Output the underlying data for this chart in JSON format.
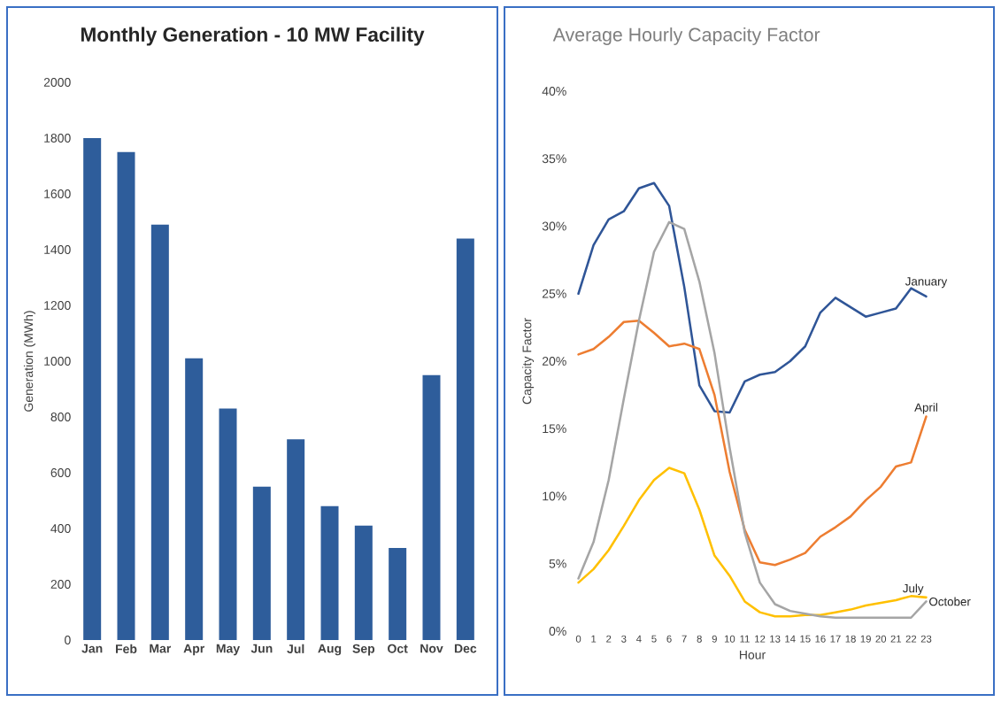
{
  "chart_data": [
    {
      "type": "bar",
      "title": "Monthly Generation - 10 MW Facility",
      "ylabel": "Generation (MWh)",
      "categories": [
        "Jan",
        "Feb",
        "Mar",
        "Apr",
        "May",
        "Jun",
        "Jul",
        "Aug",
        "Sep",
        "Oct",
        "Nov",
        "Dec"
      ],
      "values": [
        1800,
        1750,
        1490,
        1010,
        830,
        550,
        720,
        480,
        410,
        330,
        950,
        1440
      ],
      "color": "#2e5d9b",
      "ylim": [
        0,
        2000
      ],
      "yticks": [
        0,
        200,
        400,
        600,
        800,
        1000,
        1200,
        1400,
        1600,
        1800,
        2000
      ]
    },
    {
      "type": "line",
      "title": "Average Hourly Capacity Factor",
      "xlabel": "Hour",
      "ylabel": "Capacity Factor",
      "categories": [
        "0",
        "1",
        "2",
        "3",
        "4",
        "5",
        "6",
        "7",
        "8",
        "9",
        "10",
        "11",
        "12",
        "13",
        "14",
        "15",
        "16",
        "17",
        "18",
        "19",
        "20",
        "21",
        "22",
        "23"
      ],
      "series": [
        {
          "name": "January",
          "color": "#2f5597",
          "values": [
            25.0,
            28.6,
            30.5,
            31.1,
            32.8,
            33.2,
            31.5,
            25.5,
            18.2,
            16.3,
            16.2,
            18.5,
            19.0,
            19.2,
            20.0,
            21.1,
            23.6,
            24.7,
            24.0,
            23.3,
            23.6,
            23.9,
            25.4,
            24.8
          ]
        },
        {
          "name": "April",
          "color": "#ed7d31",
          "values": [
            20.5,
            20.9,
            21.8,
            22.9,
            23.0,
            22.1,
            21.1,
            21.3,
            20.9,
            17.5,
            11.8,
            7.5,
            5.1,
            4.9,
            5.3,
            5.8,
            7.0,
            7.7,
            8.5,
            9.7,
            10.7,
            12.2,
            12.5,
            15.9
          ]
        },
        {
          "name": "July",
          "color": "#ffc000",
          "values": [
            3.6,
            4.6,
            6.0,
            7.8,
            9.7,
            11.2,
            12.1,
            11.7,
            9.0,
            5.6,
            4.1,
            2.2,
            1.4,
            1.1,
            1.1,
            1.2,
            1.2,
            1.4,
            1.6,
            1.9,
            2.1,
            2.3,
            2.6,
            2.5
          ]
        },
        {
          "name": "October",
          "color": "#a5a5a5",
          "values": [
            3.9,
            6.6,
            11.2,
            17.2,
            23.0,
            28.1,
            30.3,
            29.8,
            25.9,
            20.6,
            13.6,
            7.3,
            3.6,
            2.0,
            1.5,
            1.3,
            1.1,
            1.0,
            1.0,
            1.0,
            1.0,
            1.0,
            1.0,
            2.2
          ]
        }
      ],
      "ylim": [
        0,
        40
      ],
      "yticks": [
        {
          "value": 0,
          "label": "0%"
        },
        {
          "value": 5,
          "label": "5%"
        },
        {
          "value": 10,
          "label": "10%"
        },
        {
          "value": 15,
          "label": "15%"
        },
        {
          "value": 20,
          "label": "20%"
        },
        {
          "value": 25,
          "label": "25%"
        },
        {
          "value": 30,
          "label": "30%"
        },
        {
          "value": 35,
          "label": "35%"
        },
        {
          "value": 40,
          "label": "40%"
        }
      ]
    }
  ]
}
